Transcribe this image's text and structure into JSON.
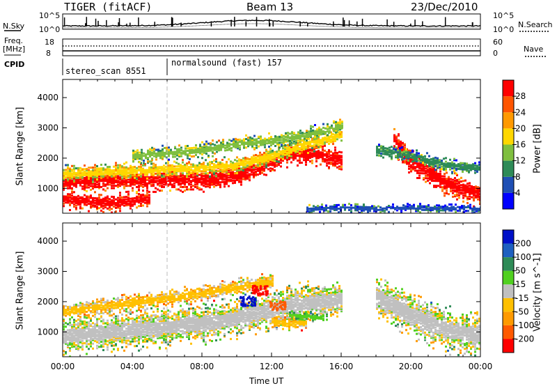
{
  "header": {
    "radar_title": "TIGER (fitACF)",
    "beam_label": "Beam 13",
    "date_label": "23/Dec/2010"
  },
  "top_panels": {
    "nsky_label": "N.Sky",
    "nsearch_label": "N.Search",
    "nsky_ticks": [
      "10^5",
      "10^0"
    ],
    "nsearch_ticks": [
      "10^5",
      "10^0"
    ],
    "freq_label_1": "Freq.",
    "freq_label_2": "[MHz]",
    "freq_ticks": [
      "18",
      "8"
    ],
    "nave_label": "Nave",
    "nave_ticks": [
      "60",
      "0"
    ],
    "cpid_label": "CPID",
    "cpid_segments": [
      {
        "name": "stereo_scan",
        "id": "8551",
        "start_hour": 0,
        "end_hour": 6
      },
      {
        "name": "normalsound (fast)",
        "id": "157",
        "start_hour": 6,
        "end_hour": 24
      }
    ]
  },
  "colorbars": {
    "power": {
      "label": "Power [dB]",
      "ticks": [
        "28",
        "24",
        "20",
        "16",
        "12",
        "8",
        "4"
      ],
      "colors": [
        "#0000ff",
        "#1f4fb4",
        "#2e8b57",
        "#7fbf3f",
        "#ffd700",
        "#ff9900",
        "#ff5500",
        "#ff0000"
      ]
    },
    "velocity": {
      "label": "Velocity [m s^-1]",
      "ticks": [
        "200",
        "100",
        "50",
        "15",
        "-15",
        "-50",
        "-100",
        "-200"
      ],
      "colors": [
        "#ff0000",
        "#ff5a00",
        "#ff9a00",
        "#ffc000",
        "#c0c0c0",
        "#50d020",
        "#2e8b57",
        "#1e60c0",
        "#0010c8"
      ]
    }
  },
  "chart_data": [
    {
      "type": "heatmap",
      "name": "power",
      "xlabel": "",
      "ylabel": "Slant Range [km]",
      "xlim": [
        0,
        24
      ],
      "ylim": [
        180,
        4600
      ],
      "yticks": [
        "4000",
        "3000",
        "2000",
        "1000"
      ],
      "bands": [
        {
          "x": [
            0,
            2,
            4,
            6,
            8,
            10,
            12,
            13,
            14,
            15,
            16
          ],
          "center": [
            1250,
            1300,
            1300,
            1300,
            1300,
            1450,
            1900,
            2150,
            2200,
            2100,
            2000
          ],
          "width": 380,
          "color_key": 7
        },
        {
          "x": [
            0,
            4,
            8,
            10,
            12,
            14,
            16
          ],
          "center": [
            1500,
            1600,
            1700,
            1800,
            2100,
            2500,
            2800
          ],
          "width": 300,
          "color_key": 4
        },
        {
          "x": [
            0,
            3,
            5
          ],
          "center": [
            650,
            550,
            700
          ],
          "width": 320,
          "color_key": 7
        },
        {
          "x": [
            4,
            8,
            10,
            12,
            14,
            16
          ],
          "center": [
            2100,
            2300,
            2500,
            2600,
            2800,
            3100
          ],
          "width": 260,
          "color_key": 3
        },
        {
          "x": [
            19,
            20,
            22,
            24
          ],
          "center": [
            2600,
            1900,
            1200,
            800
          ],
          "width": 450,
          "color_key": 7
        },
        {
          "x": [
            18,
            20,
            22,
            24
          ],
          "center": [
            2300,
            2100,
            1800,
            1700
          ],
          "width": 250,
          "color_key": 2
        },
        {
          "x": [
            14,
            16,
            18,
            20,
            24
          ],
          "center": [
            350,
            400,
            350,
            400,
            350
          ],
          "width": 150,
          "color_key": 1
        }
      ]
    },
    {
      "type": "heatmap",
      "name": "velocity",
      "xlabel": "Time UT",
      "ylabel": "Slant Range [km]",
      "xlim": [
        0,
        24
      ],
      "ylim": [
        180,
        4600
      ],
      "xticks": [
        "00:00",
        "04:00",
        "08:00",
        "12:00",
        "16:00",
        "20:00",
        "00:00"
      ],
      "yticks": [
        "4000",
        "3000",
        "2000",
        "1000"
      ],
      "bands": [
        {
          "x": [
            0,
            4,
            8,
            10,
            12,
            14,
            16
          ],
          "center": [
            900,
            1100,
            1300,
            1500,
            1800,
            2000,
            2100
          ],
          "width": 700,
          "color_key": 4
        },
        {
          "x": [
            18,
            20,
            22,
            24
          ],
          "center": [
            2200,
            1600,
            1100,
            900
          ],
          "width": 800,
          "color_key": 4
        },
        {
          "x": [
            0,
            4,
            8,
            10,
            12
          ],
          "center": [
            1700,
            2000,
            2300,
            2500,
            2700
          ],
          "width": 300,
          "color_key": 3
        },
        {
          "x": [
            12,
            13,
            14
          ],
          "center": [
            1400,
            1300,
            1350
          ],
          "width": 250,
          "color_key": 3
        },
        {
          "x": [
            13,
            14,
            15
          ],
          "center": [
            1600,
            1550,
            1500
          ],
          "width": 200,
          "color_key": 5
        }
      ],
      "patches": [
        {
          "x": 10.6,
          "y": 2050,
          "color_key": 8
        },
        {
          "x": 11.3,
          "y": 2400,
          "color_key": 0
        },
        {
          "x": 12.3,
          "y": 1900,
          "color_key": 1
        }
      ]
    }
  ]
}
